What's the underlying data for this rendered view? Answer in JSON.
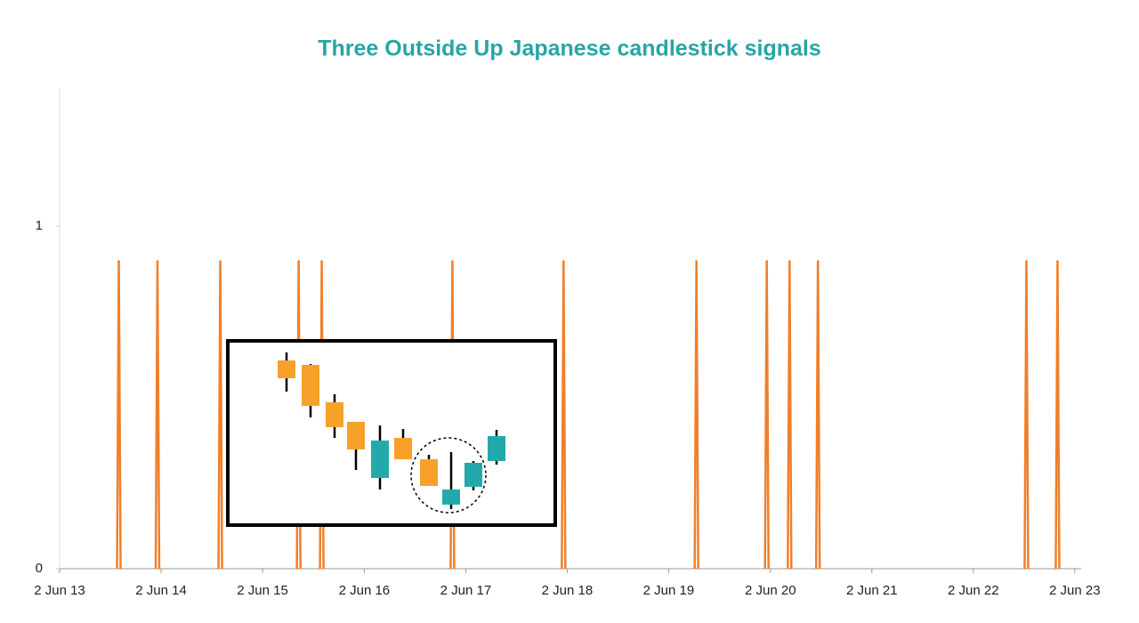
{
  "chart_data": {
    "type": "spike",
    "title": "Three Outside Up Japanese candlestick signals",
    "series": [
      {
        "color": "#f07f2a",
        "x": [
          "2014-01-01",
          "2014-05-20",
          "2015-01-01",
          "2015-10-10",
          "2016-01-01",
          "2017-04-15",
          "2018-05-20",
          "2019-09-10",
          "2020-05-20",
          "2020-08-10",
          "2020-11-20",
          "2022-12-10",
          "2023-04-01"
        ],
        "values": [
          0.9,
          0.9,
          0.9,
          0.9,
          0.9,
          0.9,
          0.9,
          0.9,
          0.9,
          0.9,
          0.9,
          0.9,
          0.9
        ]
      }
    ],
    "xlim": [
      "2013-06-02",
      "2023-06-25"
    ],
    "xticks": [
      {
        "value": "2013-06-02",
        "label": "2 Jun 13"
      },
      {
        "value": "2014-06-02",
        "label": "2 Jun 14"
      },
      {
        "value": "2015-06-02",
        "label": "2 Jun 15"
      },
      {
        "value": "2016-06-02",
        "label": "2 Jun 16"
      },
      {
        "value": "2017-06-02",
        "label": "2 Jun 17"
      },
      {
        "value": "2018-06-02",
        "label": "2 Jun 18"
      },
      {
        "value": "2019-06-02",
        "label": "2 Jun 19"
      },
      {
        "value": "2020-06-02",
        "label": "2 Jun 20"
      },
      {
        "value": "2021-06-02",
        "label": "2 Jun 21"
      },
      {
        "value": "2022-06-02",
        "label": "2 Jun 22"
      },
      {
        "value": "2023-06-02",
        "label": "2 Jun 23"
      }
    ],
    "ylim": [
      0,
      1.4
    ],
    "yticks": [
      0,
      1
    ]
  }
}
